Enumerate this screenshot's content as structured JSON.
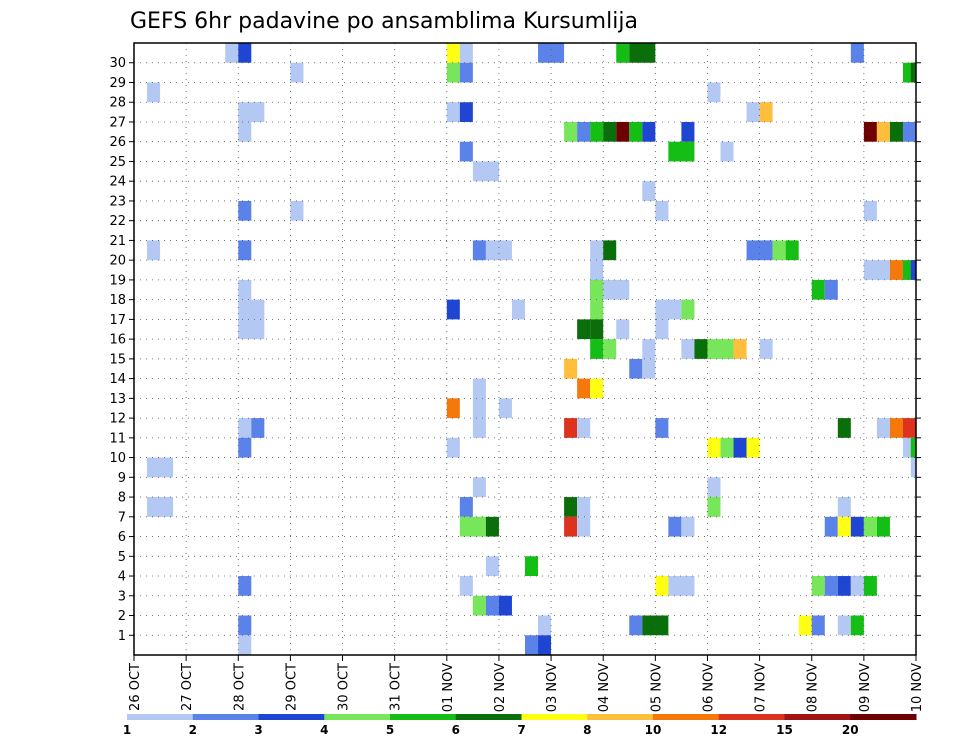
{
  "title": "GEFS 6hr padavine po ansamblima Kursumlija",
  "chart_data": {
    "type": "heatmap",
    "title": "GEFS 6hr padavine po ansamblima Kursumlija",
    "x_tick_labels": [
      "26 OCT",
      "27 OCT",
      "28 OCT",
      "29 OCT",
      "30 OCT",
      "31 OCT",
      "01 NOV",
      "02 NOV",
      "03 NOV",
      "04 NOV",
      "05 NOV",
      "06 NOV",
      "07 NOV",
      "08 NOV",
      "09 NOV",
      "10 NOV"
    ],
    "y_tick_labels": [
      "1",
      "2",
      "3",
      "4",
      "5",
      "6",
      "7",
      "8",
      "9",
      "10",
      "11",
      "12",
      "13",
      "14",
      "15",
      "16",
      "17",
      "18",
      "19",
      "20",
      "21",
      "22",
      "23",
      "24",
      "25",
      "26",
      "27",
      "28",
      "29",
      "30"
    ],
    "y_range": [
      0,
      30
    ],
    "x_range_days": [
      0,
      15
    ],
    "grid": "dotted",
    "color_levels": [
      {
        "label": "1",
        "color": "#b4c8f4"
      },
      {
        "label": "2",
        "color": "#5a82e8"
      },
      {
        "label": "3",
        "color": "#1e46d2"
      },
      {
        "label": "4",
        "color": "#78e65a"
      },
      {
        "label": "5",
        "color": "#14be14"
      },
      {
        "label": "6",
        "color": "#0a6e0a"
      },
      {
        "label": "7",
        "color": "#ffff14"
      },
      {
        "label": "8",
        "color": "#ffbe3c"
      },
      {
        "label": "10",
        "color": "#f5780a"
      },
      {
        "label": "12",
        "color": "#dc321e"
      },
      {
        "label": "15",
        "color": "#a01414"
      },
      {
        "label": "20",
        "color": "#6e0000"
      }
    ],
    "colorbar_labels": [
      "1",
      "2",
      "3",
      "4",
      "5",
      "6",
      "7",
      "8",
      "10",
      "12",
      "15",
      "20"
    ],
    "cells_note": "each cell: [x_day (days from 26 OCT), member, span_days, color_index]",
    "cells": [
      [
        1.75,
        30,
        0.25,
        0
      ],
      [
        2.0,
        30,
        0.25,
        2
      ],
      [
        6.0,
        30,
        0.25,
        6
      ],
      [
        6.25,
        30,
        0.25,
        0
      ],
      [
        7.75,
        30,
        0.5,
        1
      ],
      [
        9.25,
        30,
        0.25,
        4
      ],
      [
        9.5,
        30,
        0.5,
        5
      ],
      [
        13.75,
        30,
        0.25,
        1
      ],
      [
        3.0,
        29,
        0.25,
        0
      ],
      [
        6.0,
        29,
        0.25,
        3
      ],
      [
        6.25,
        29,
        0.25,
        1
      ],
      [
        14.75,
        29,
        0.25,
        4
      ],
      [
        14.9,
        29,
        0.1,
        5
      ],
      [
        0.25,
        28,
        0.25,
        0
      ],
      [
        11.0,
        28,
        0.25,
        0
      ],
      [
        2.0,
        27,
        0.5,
        0
      ],
      [
        6.0,
        27,
        0.25,
        0
      ],
      [
        6.25,
        27,
        0.25,
        2
      ],
      [
        11.75,
        27,
        0.25,
        0
      ],
      [
        12.0,
        27,
        0.25,
        7
      ],
      [
        2.0,
        26,
        0.25,
        0
      ],
      [
        8.25,
        26,
        0.25,
        3
      ],
      [
        8.5,
        26,
        0.25,
        1
      ],
      [
        8.75,
        26,
        0.25,
        4
      ],
      [
        9.0,
        26,
        0.25,
        5
      ],
      [
        9.25,
        26,
        0.25,
        11
      ],
      [
        9.5,
        26,
        0.25,
        4
      ],
      [
        9.75,
        26,
        0.25,
        2
      ],
      [
        10.5,
        26,
        0.25,
        2
      ],
      [
        14.0,
        26,
        0.25,
        11
      ],
      [
        14.25,
        26,
        0.25,
        7
      ],
      [
        14.5,
        26,
        0.25,
        5
      ],
      [
        14.75,
        26,
        0.25,
        1
      ],
      [
        6.25,
        25,
        0.25,
        1
      ],
      [
        10.25,
        25,
        0.5,
        4
      ],
      [
        11.25,
        25,
        0.25,
        0
      ],
      [
        6.5,
        24,
        0.5,
        0
      ],
      [
        9.75,
        23,
        0.25,
        0
      ],
      [
        2.0,
        22,
        0.25,
        1
      ],
      [
        3.0,
        22,
        0.25,
        0
      ],
      [
        10.0,
        22,
        0.25,
        0
      ],
      [
        14.0,
        22,
        0.25,
        0
      ],
      [
        0.25,
        20,
        0.25,
        0
      ],
      [
        2.0,
        20,
        0.25,
        1
      ],
      [
        6.5,
        20,
        0.25,
        1
      ],
      [
        6.75,
        20,
        0.5,
        0
      ],
      [
        8.75,
        20,
        0.25,
        0
      ],
      [
        9.0,
        20,
        0.25,
        5
      ],
      [
        11.75,
        20,
        0.5,
        1
      ],
      [
        12.25,
        20,
        0.25,
        3
      ],
      [
        12.5,
        20,
        0.25,
        4
      ],
      [
        8.75,
        19,
        0.25,
        0
      ],
      [
        8.75,
        18,
        0.25,
        1
      ],
      [
        14.0,
        19,
        0.5,
        0
      ],
      [
        14.5,
        19,
        0.25,
        8
      ],
      [
        14.75,
        19,
        0.25,
        4
      ],
      [
        14.9,
        19,
        0.1,
        2
      ],
      [
        2.0,
        18,
        0.25,
        0
      ],
      [
        9.0,
        18,
        0.5,
        0
      ],
      [
        13.0,
        18,
        0.25,
        4
      ],
      [
        13.25,
        18,
        0.25,
        1
      ],
      [
        8.75,
        18,
        0.25,
        3
      ],
      [
        2.0,
        17,
        0.5,
        0
      ],
      [
        6.0,
        17,
        0.25,
        2
      ],
      [
        7.25,
        17,
        0.25,
        0
      ],
      [
        8.75,
        17,
        0.25,
        3
      ],
      [
        8.75,
        16,
        0.25,
        5
      ],
      [
        10.0,
        17,
        0.5,
        0
      ],
      [
        10.5,
        17,
        0.25,
        3
      ],
      [
        2.0,
        16,
        0.5,
        0
      ],
      [
        8.5,
        16,
        0.25,
        5
      ],
      [
        9.25,
        16,
        0.25,
        0
      ],
      [
        10.0,
        16,
        0.25,
        0
      ],
      [
        8.75,
        15,
        0.25,
        4
      ],
      [
        9.0,
        15,
        0.25,
        3
      ],
      [
        9.75,
        15,
        0.25,
        0
      ],
      [
        10.5,
        15,
        0.25,
        0
      ],
      [
        10.75,
        15,
        0.25,
        5
      ],
      [
        11.0,
        15,
        0.5,
        3
      ],
      [
        11.5,
        15,
        0.25,
        7
      ],
      [
        12.0,
        15,
        0.25,
        0
      ],
      [
        8.25,
        14,
        0.25,
        7
      ],
      [
        9.5,
        14,
        0.25,
        1
      ],
      [
        9.75,
        14,
        0.25,
        0
      ],
      [
        6.5,
        13,
        0.25,
        0
      ],
      [
        8.5,
        13,
        0.25,
        8
      ],
      [
        8.75,
        13,
        0.25,
        6
      ],
      [
        6.5,
        12,
        0.25,
        0
      ],
      [
        6.0,
        12,
        0.25,
        8
      ],
      [
        7.0,
        12,
        0.25,
        0
      ],
      [
        2.0,
        11,
        0.25,
        0
      ],
      [
        2.25,
        11,
        0.25,
        1
      ],
      [
        6.5,
        11,
        0.25,
        0
      ],
      [
        8.25,
        11,
        0.25,
        9
      ],
      [
        8.5,
        11,
        0.25,
        0
      ],
      [
        10.0,
        11,
        0.25,
        1
      ],
      [
        13.5,
        11,
        0.25,
        5
      ],
      [
        14.25,
        11,
        0.25,
        0
      ],
      [
        14.5,
        11,
        0.25,
        8
      ],
      [
        14.75,
        11,
        0.25,
        9
      ],
      [
        2.0,
        10,
        0.25,
        1
      ],
      [
        6.0,
        10,
        0.25,
        0
      ],
      [
        11.0,
        10,
        0.25,
        6
      ],
      [
        11.25,
        10,
        0.25,
        3
      ],
      [
        11.5,
        10,
        0.25,
        2
      ],
      [
        11.75,
        10,
        0.25,
        6
      ],
      [
        14.75,
        10,
        0.25,
        0
      ],
      [
        14.9,
        10,
        0.1,
        4
      ],
      [
        0.25,
        9,
        0.5,
        0
      ],
      [
        14.9,
        9,
        0.1,
        0
      ],
      [
        6.5,
        8,
        0.25,
        0
      ],
      [
        11.0,
        8,
        0.25,
        0
      ],
      [
        0.25,
        7,
        0.5,
        0
      ],
      [
        6.25,
        7,
        0.25,
        1
      ],
      [
        8.25,
        7,
        0.25,
        5
      ],
      [
        8.5,
        7,
        0.25,
        0
      ],
      [
        11.0,
        7,
        0.25,
        3
      ],
      [
        13.5,
        7,
        0.25,
        0
      ],
      [
        6.25,
        6,
        0.5,
        3
      ],
      [
        6.75,
        6,
        0.25,
        5
      ],
      [
        8.25,
        6,
        0.25,
        9
      ],
      [
        8.5,
        6,
        0.25,
        0
      ],
      [
        10.25,
        6,
        0.25,
        1
      ],
      [
        10.5,
        6,
        0.25,
        0
      ],
      [
        13.25,
        6,
        0.25,
        1
      ],
      [
        13.5,
        6,
        0.25,
        6
      ],
      [
        13.75,
        6,
        0.25,
        2
      ],
      [
        14.0,
        6,
        0.25,
        3
      ],
      [
        14.25,
        6,
        0.25,
        4
      ],
      [
        6.75,
        4,
        0.25,
        0
      ],
      [
        7.5,
        4,
        0.25,
        4
      ],
      [
        2.0,
        3,
        0.25,
        1
      ],
      [
        6.25,
        3,
        0.25,
        0
      ],
      [
        10.0,
        3,
        0.25,
        6
      ],
      [
        10.25,
        3,
        0.5,
        0
      ],
      [
        13.0,
        3,
        0.25,
        3
      ],
      [
        13.25,
        3,
        0.25,
        1
      ],
      [
        13.5,
        3,
        0.25,
        2
      ],
      [
        13.75,
        3,
        0.25,
        0
      ],
      [
        14.0,
        3,
        0.25,
        4
      ],
      [
        6.5,
        2,
        0.25,
        3
      ],
      [
        6.75,
        2,
        0.25,
        1
      ],
      [
        7.0,
        2,
        0.25,
        2
      ],
      [
        2.0,
        1,
        0.25,
        1
      ],
      [
        7.75,
        1,
        0.25,
        0
      ],
      [
        9.5,
        1,
        0.25,
        1
      ],
      [
        9.75,
        1,
        0.5,
        5
      ],
      [
        12.75,
        1,
        0.25,
        6
      ],
      [
        13.0,
        1,
        0.25,
        1
      ],
      [
        13.5,
        1,
        0.25,
        0
      ],
      [
        13.75,
        1,
        0.25,
        4
      ],
      [
        7.5,
        0,
        0.25,
        1
      ],
      [
        7.75,
        0,
        0.25,
        2
      ],
      [
        2.0,
        0,
        0.25,
        0
      ]
    ]
  }
}
